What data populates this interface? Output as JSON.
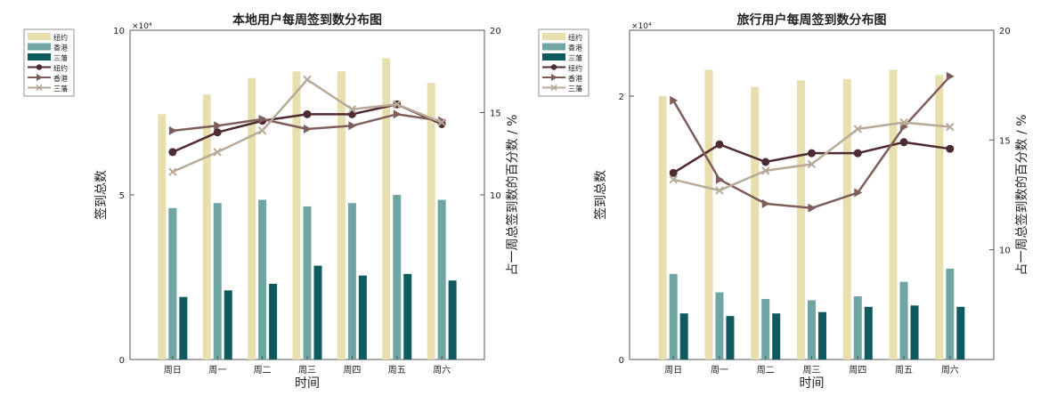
{
  "chart_data": [
    {
      "type": "bar",
      "title": "本地用户每周签到数分布图",
      "xlabel": "时间",
      "ylabel": "签到总数",
      "y2label": "占一周总签到数的百分数 / %",
      "y_multiplier": "×10⁴",
      "ylim": [
        0,
        10
      ],
      "y2lim": [
        0,
        20
      ],
      "yticks": [
        "0",
        "5",
        "10"
      ],
      "y2ticks": [
        "10",
        "15",
        "20"
      ],
      "categories": [
        "周日",
        "周一",
        "周二",
        "周三",
        "周四",
        "周五",
        "周六"
      ],
      "bar_series": [
        {
          "name": "纽约",
          "color": "#e8dfae",
          "values": [
            7.45,
            8.05,
            8.55,
            8.75,
            8.75,
            9.15,
            8.4
          ]
        },
        {
          "name": "香港",
          "color": "#6fa6a3",
          "values": [
            4.6,
            4.75,
            4.85,
            4.65,
            4.75,
            5.0,
            4.85
          ]
        },
        {
          "name": "三藩",
          "color": "#0e5a5e",
          "values": [
            1.9,
            2.1,
            2.3,
            2.85,
            2.55,
            2.6,
            2.4
          ]
        }
      ],
      "line_series": [
        {
          "name": "纽约",
          "color": "#4e2a32",
          "marker": "circle",
          "values": [
            12.6,
            13.8,
            14.5,
            14.9,
            14.9,
            15.5,
            14.3
          ]
        },
        {
          "name": "香港",
          "color": "#7d5e5b",
          "marker": "triangle",
          "values": [
            13.9,
            14.2,
            14.6,
            14.0,
            14.2,
            14.9,
            14.5
          ]
        },
        {
          "name": "三藩",
          "color": "#b8aa99",
          "marker": "x",
          "values": [
            11.4,
            12.6,
            13.9,
            17.0,
            15.2,
            15.5,
            14.4
          ]
        }
      ],
      "legend": "top-left-outside"
    },
    {
      "type": "bar",
      "title": "旅行用户每周签到数分布图",
      "xlabel": "时间",
      "ylabel": "签到总数",
      "y2label": "占一周总签到数的百分数 / %",
      "y_multiplier": "×10⁴",
      "ylim": [
        0,
        2.5
      ],
      "y2lim": [
        5,
        20
      ],
      "yticks": [
        "0",
        "2"
      ],
      "y2ticks": [
        "10",
        "15",
        "20"
      ],
      "categories": [
        "周日",
        "周一",
        "周二",
        "周三",
        "周四",
        "周五",
        "周六"
      ],
      "bar_series": [
        {
          "name": "纽约",
          "color": "#e8dfae",
          "values": [
            2.0,
            2.2,
            2.07,
            2.12,
            2.13,
            2.2,
            2.16
          ]
        },
        {
          "name": "香港",
          "color": "#6fa6a3",
          "values": [
            0.65,
            0.51,
            0.46,
            0.45,
            0.48,
            0.59,
            0.69
          ]
        },
        {
          "name": "三藩",
          "color": "#0e5a5e",
          "values": [
            0.35,
            0.33,
            0.35,
            0.36,
            0.4,
            0.41,
            0.4
          ]
        }
      ],
      "line_series": [
        {
          "name": "纽约",
          "color": "#4e2a32",
          "marker": "circle",
          "values": [
            13.5,
            14.8,
            14.0,
            14.4,
            14.4,
            14.9,
            14.6
          ]
        },
        {
          "name": "香港",
          "color": "#7d5e5b",
          "marker": "triangle",
          "values": [
            16.8,
            13.2,
            12.1,
            11.9,
            12.6,
            15.6,
            17.9
          ]
        },
        {
          "name": "三藩",
          "color": "#b8aa99",
          "marker": "x",
          "values": [
            13.2,
            12.7,
            13.6,
            13.9,
            15.5,
            15.8,
            15.6
          ]
        }
      ],
      "legend": "top-left-outside"
    }
  ]
}
